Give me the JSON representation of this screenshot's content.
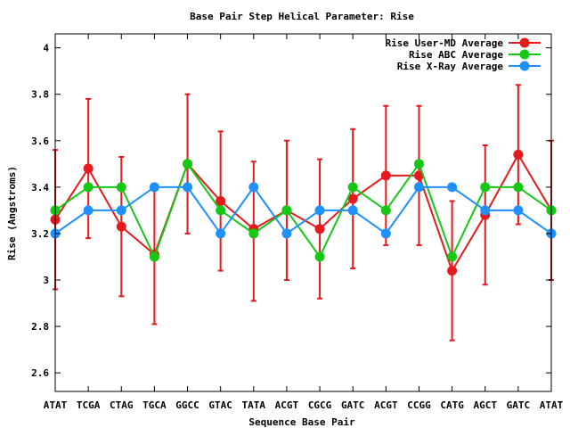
{
  "chart_data": {
    "type": "line",
    "title": "Base Pair Step Helical Parameter: Rise",
    "xlabel": "Sequence Base Pair",
    "ylabel": "Rise (Angstroms)",
    "categories": [
      "ATAT",
      "TCGA",
      "CTAG",
      "TGCA",
      "GGCC",
      "GTAC",
      "TATA",
      "ACGT",
      "CGCG",
      "GATC",
      "ACGT",
      "CCGG",
      "CATG",
      "AGCT",
      "GATC",
      "ATAT"
    ],
    "ylim": [
      2.52,
      4.06
    ],
    "yticks": [
      2.6,
      2.8,
      3.0,
      3.2,
      3.4,
      3.6,
      3.8,
      4.0
    ],
    "ytick_labels": [
      "2.6",
      "2.8",
      "3",
      "3.2",
      "3.4",
      "3.6",
      "3.8",
      "4"
    ],
    "legend_position": "top-right",
    "series": [
      {
        "name": "Rise User-MD Average",
        "color": "#e41a1c",
        "values": [
          3.26,
          3.48,
          3.23,
          3.11,
          3.5,
          3.34,
          3.22,
          3.3,
          3.22,
          3.35,
          3.45,
          3.45,
          3.04,
          3.28,
          3.54,
          3.3
        ],
        "err_low": [
          2.96,
          3.18,
          2.93,
          2.81,
          3.2,
          3.04,
          2.91,
          3.0,
          2.92,
          3.05,
          3.15,
          3.15,
          2.74,
          2.98,
          3.24,
          3.0
        ],
        "err_high": [
          3.56,
          3.78,
          3.53,
          3.41,
          3.8,
          3.64,
          3.51,
          3.6,
          3.52,
          3.65,
          3.75,
          3.75,
          3.34,
          3.58,
          3.84,
          3.6
        ]
      },
      {
        "name": "Rise ABC Average",
        "color": "#14c814",
        "values": [
          3.3,
          3.4,
          3.4,
          3.1,
          3.5,
          3.3,
          3.2,
          3.3,
          3.1,
          3.4,
          3.3,
          3.5,
          3.1,
          3.4,
          3.4,
          3.3
        ]
      },
      {
        "name": "Rise X-Ray Average",
        "color": "#1e90ff",
        "values": [
          3.2,
          3.3,
          3.3,
          3.4,
          3.4,
          3.2,
          3.4,
          3.2,
          3.3,
          3.3,
          3.2,
          3.4,
          3.4,
          3.3,
          3.3,
          3.2
        ]
      }
    ]
  }
}
